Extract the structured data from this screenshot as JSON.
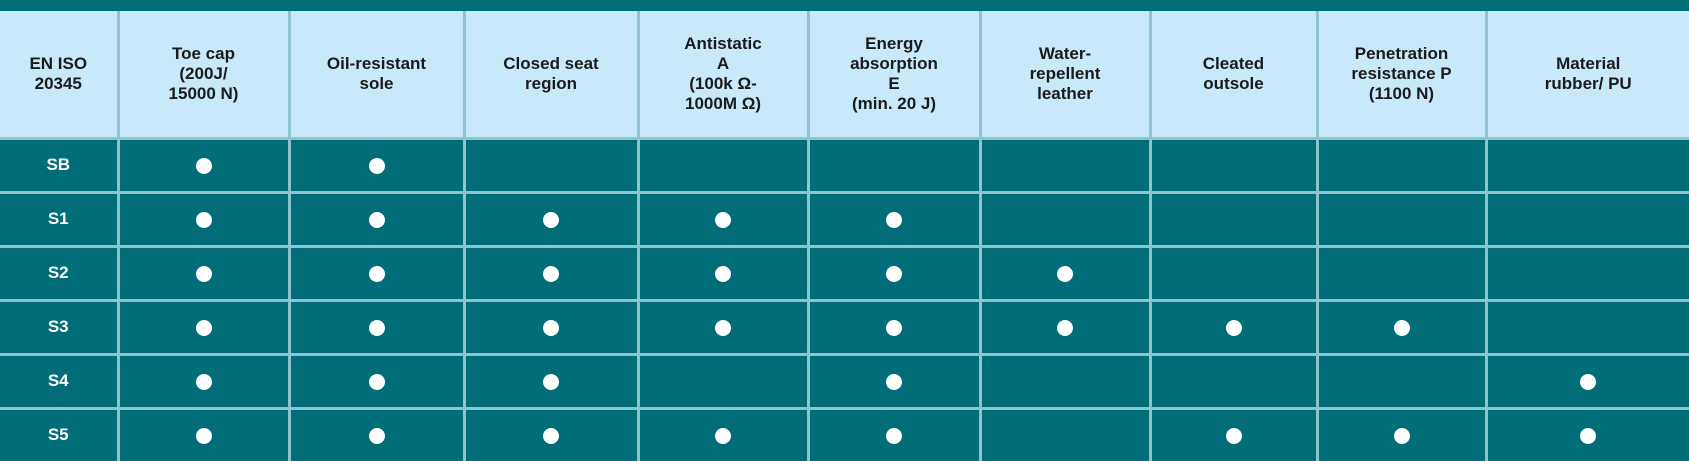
{
  "table": {
    "columns": [
      "EN ISO\n20345",
      "Toe cap\n(200J/\n15000 N)",
      "Oil-resistant\nsole",
      "Closed seat\nregion",
      "Antistatic\nA\n(100k Ω-\n1000M Ω)",
      "Energy\nabsorption\nE\n(min. 20 J)",
      "Water-\nrepellent\nleather",
      "Cleated\noutsole",
      "Penetration\nresistance P\n(1100 N)",
      "Material\nrubber/ PU"
    ],
    "rows": [
      {
        "label": "SB",
        "cells": [
          true,
          true,
          false,
          false,
          false,
          false,
          false,
          false,
          false
        ]
      },
      {
        "label": "S1",
        "cells": [
          true,
          true,
          true,
          true,
          true,
          false,
          false,
          false,
          false
        ]
      },
      {
        "label": "S2",
        "cells": [
          true,
          true,
          true,
          true,
          true,
          true,
          false,
          false,
          false
        ]
      },
      {
        "label": "S3",
        "cells": [
          true,
          true,
          true,
          true,
          true,
          true,
          true,
          true,
          false
        ]
      },
      {
        "label": "S4",
        "cells": [
          true,
          true,
          true,
          false,
          true,
          false,
          false,
          false,
          true
        ]
      },
      {
        "label": "S5",
        "cells": [
          true,
          true,
          true,
          true,
          true,
          false,
          true,
          true,
          true
        ]
      }
    ]
  }
}
